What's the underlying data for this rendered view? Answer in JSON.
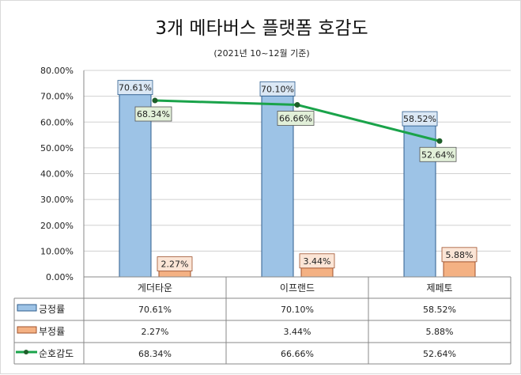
{
  "chart_data": {
    "type": "bar",
    "title": "3개 메타버스 플랫폼 호감도",
    "subtitle": "(2021년 10~12월 기준)",
    "categories": [
      "게더타운",
      "이프랜드",
      "제페토"
    ],
    "ylim": [
      0,
      80
    ],
    "yticks": [
      "0.00%",
      "10.00%",
      "20.00%",
      "30.00%",
      "40.00%",
      "50.00%",
      "60.00%",
      "70.00%",
      "80.00%"
    ],
    "grid": true,
    "legend": "data-table",
    "series": [
      {
        "name": "긍정률",
        "kind": "bar",
        "color": "#9dc3e6",
        "edge": "#2e5e8e",
        "label_bg": "#dbe8f5",
        "values": [
          70.61,
          70.1,
          58.52
        ],
        "labels": [
          "70.61%",
          "70.10%",
          "58.52%"
        ]
      },
      {
        "name": "부정률",
        "kind": "bar",
        "color": "#f4b183",
        "edge": "#a0522d",
        "label_bg": "#fbe5d6",
        "values": [
          2.27,
          3.44,
          5.88
        ],
        "labels": [
          "2.27%",
          "3.44%",
          "5.88%"
        ]
      },
      {
        "name": "순호감도",
        "kind": "line",
        "color": "#1aa34a",
        "marker": "#1e5e2a",
        "label_bg": "#e2f0d9",
        "values": [
          68.34,
          66.66,
          52.64
        ],
        "labels": [
          "68.34%",
          "66.66%",
          "52.64%"
        ]
      }
    ]
  }
}
